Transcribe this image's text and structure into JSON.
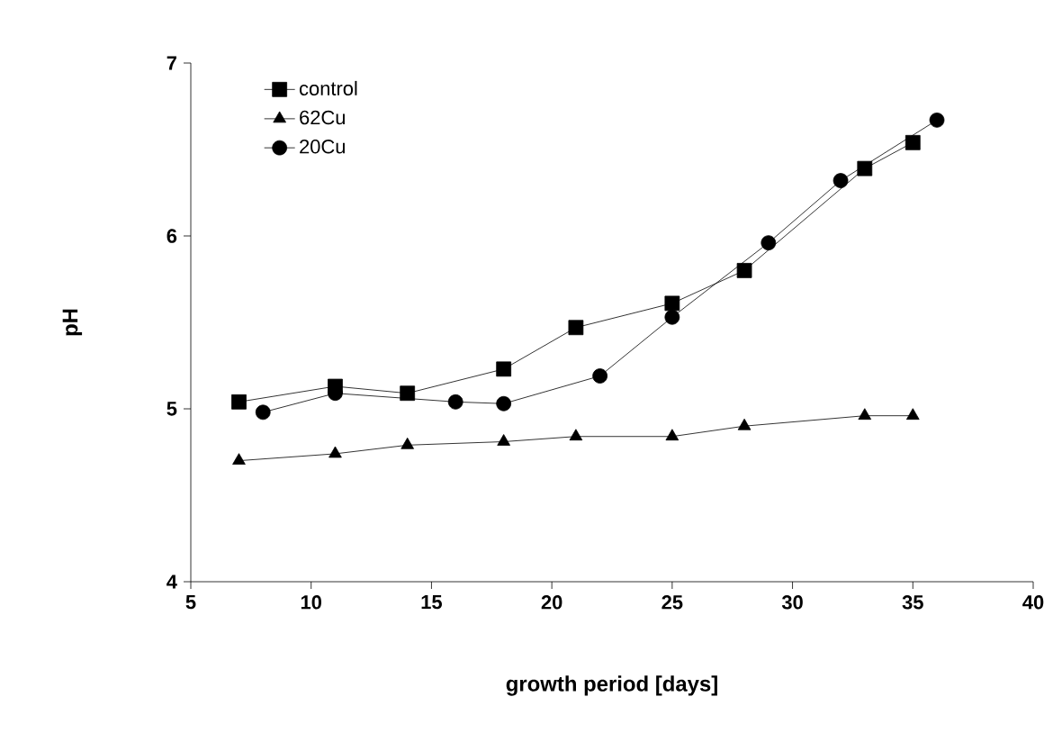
{
  "chart_data": {
    "type": "line",
    "xlabel": "growth period [days]",
    "ylabel": "pH",
    "xlim": [
      5,
      40
    ],
    "ylim": [
      4,
      7
    ],
    "xticks": [
      5,
      10,
      15,
      20,
      25,
      30,
      35,
      40
    ],
    "yticks": [
      4,
      5,
      6,
      7
    ],
    "legend": "top left",
    "grid": false,
    "series": [
      {
        "name": "control",
        "color": "#000000",
        "marker": "square",
        "x": [
          7,
          11,
          14,
          18,
          21,
          25,
          28,
          33,
          35
        ],
        "values": [
          5.04,
          5.13,
          5.09,
          5.23,
          5.47,
          5.61,
          5.8,
          6.39,
          6.54
        ]
      },
      {
        "name": "62Cu",
        "color": "#000000",
        "marker": "triangle",
        "x": [
          7,
          11,
          14,
          18,
          21,
          25,
          28,
          33,
          35
        ],
        "values": [
          4.7,
          4.74,
          4.79,
          4.81,
          4.84,
          4.84,
          4.9,
          4.96,
          4.96
        ]
      },
      {
        "name": "20Cu",
        "color": "#000000",
        "marker": "circle",
        "x": [
          8,
          11,
          16,
          18,
          22,
          25,
          29,
          32,
          36
        ],
        "values": [
          4.98,
          5.09,
          5.04,
          5.03,
          5.19,
          5.53,
          5.96,
          6.32,
          6.67
        ]
      }
    ]
  }
}
